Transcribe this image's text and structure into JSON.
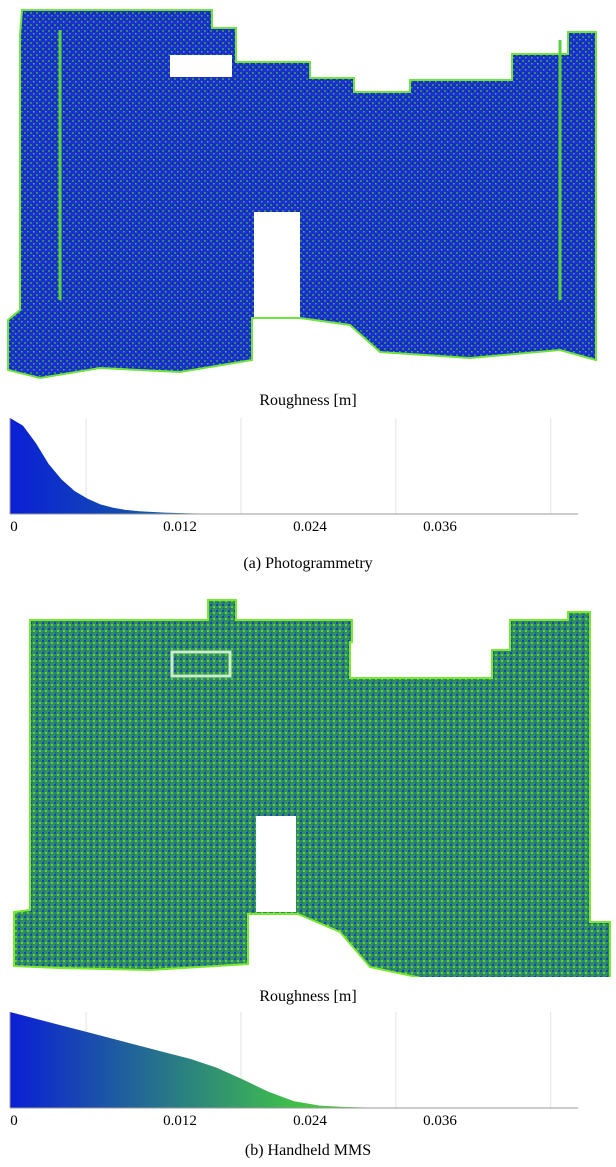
{
  "panels": [
    {
      "id": "a",
      "caption": "(a)  Photogrammetry",
      "colorbar_label": "Roughness [m]",
      "color_low": "#0a1fd6",
      "color_mid": "#1f8f7c",
      "color_high": "#7cf01e"
    },
    {
      "id": "b",
      "caption": "(b)  Handheld MMS",
      "colorbar_label": "Roughness [m]",
      "color_low": "#0a1fd6",
      "color_mid": "#3fbf4a",
      "color_high": "#9af21a"
    }
  ],
  "chart_data": [
    {
      "type": "area",
      "title": "",
      "xlabel": "Roughness [m]",
      "ylabel": "",
      "xlim": [
        0,
        0.044
      ],
      "ticks": [
        "0",
        "0.012",
        "0.024",
        "0.036"
      ],
      "tick_values": [
        0,
        0.012,
        0.024,
        0.036
      ],
      "x": [
        0,
        0.001,
        0.002,
        0.003,
        0.004,
        0.005,
        0.006,
        0.007,
        0.008,
        0.009,
        0.01,
        0.012,
        0.014,
        0.016,
        0.018,
        0.02,
        0.024,
        0.044
      ],
      "values": [
        1.0,
        0.92,
        0.74,
        0.52,
        0.36,
        0.24,
        0.16,
        0.1,
        0.065,
        0.042,
        0.028,
        0.014,
        0.007,
        0.003,
        0.0015,
        0.0008,
        0.0003,
        0.0
      ]
    },
    {
      "type": "area",
      "title": "",
      "xlabel": "Roughness [m]",
      "ylabel": "",
      "xlim": [
        0,
        0.044
      ],
      "ticks": [
        "0",
        "0.012",
        "0.024",
        "0.036"
      ],
      "tick_values": [
        0,
        0.012,
        0.024,
        0.036
      ],
      "x": [
        0,
        0.002,
        0.004,
        0.006,
        0.008,
        0.01,
        0.012,
        0.014,
        0.016,
        0.018,
        0.02,
        0.022,
        0.024,
        0.026,
        0.028,
        0.03,
        0.044
      ],
      "values": [
        1.0,
        0.93,
        0.86,
        0.79,
        0.72,
        0.65,
        0.58,
        0.51,
        0.42,
        0.3,
        0.17,
        0.07,
        0.025,
        0.01,
        0.004,
        0.002,
        0.0
      ]
    }
  ]
}
